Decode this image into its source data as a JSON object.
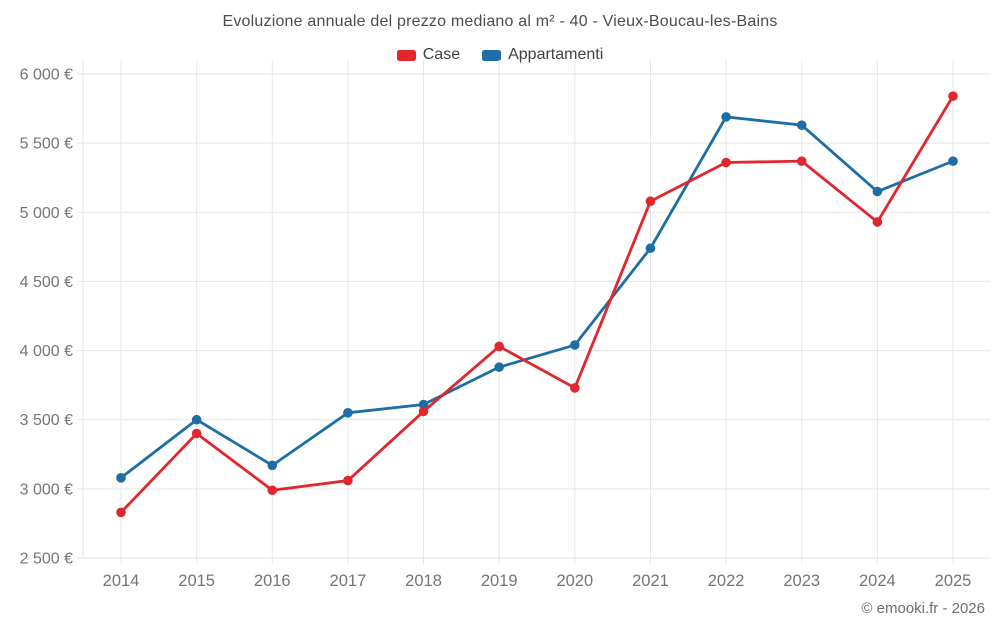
{
  "title": "Evoluzione annuale del prezzo mediano al m² - 40 - Vieux-Boucau-les-Bains",
  "footer": "© emooki.fr - 2026",
  "chart_data": {
    "type": "line",
    "title": "Evoluzione annuale del prezzo mediano al m² - 40 - Vieux-Boucau-les-Bains",
    "categories": [
      "2014",
      "2015",
      "2016",
      "2017",
      "2018",
      "2019",
      "2020",
      "2021",
      "2022",
      "2023",
      "2024",
      "2025"
    ],
    "series": [
      {
        "name": "Case",
        "color": "#e1262d",
        "values": [
          2830,
          3400,
          2990,
          3060,
          3560,
          4030,
          3730,
          5080,
          5360,
          5370,
          4930,
          5840
        ]
      },
      {
        "name": "Appartamenti",
        "color": "#1c6ea4",
        "values": [
          3080,
          3500,
          3170,
          3550,
          3610,
          3880,
          4040,
          4740,
          5690,
          5630,
          5150,
          5370
        ]
      }
    ],
    "xlabel": "",
    "ylabel": "",
    "ylim": [
      2500,
      6000
    ],
    "y_tick_step": 500,
    "y_tick_suffix": " €",
    "grid": true,
    "legend_position": "top"
  },
  "colors": {
    "grid": "#e6e6e6",
    "tick_label": "#757575",
    "title_text": "#4d4d4d",
    "legend_text": "#424242",
    "footer_text": "#6e6e6e",
    "background": "#ffffff",
    "case_series": "#e1262d",
    "appartamenti_series": "#1c6ea4"
  }
}
